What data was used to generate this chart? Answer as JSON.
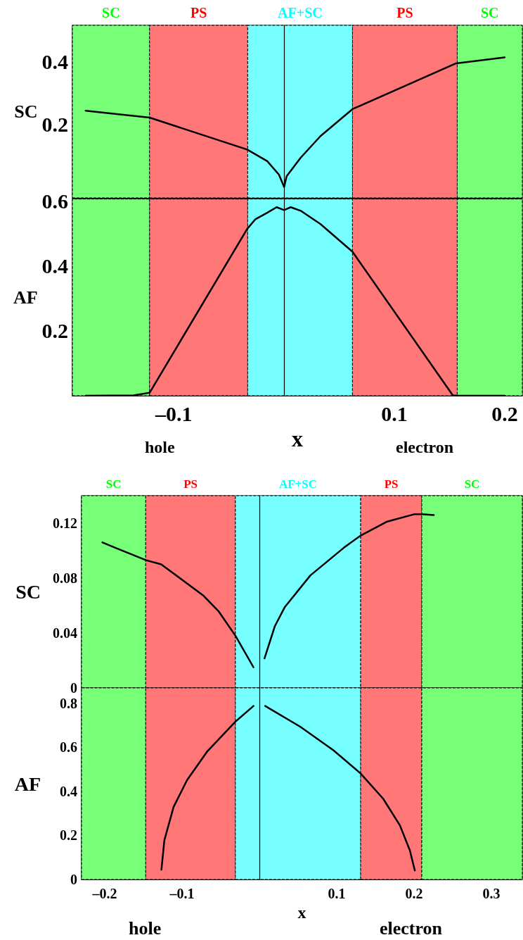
{
  "chart_data": [
    {
      "type": "line",
      "ylabel": "SC",
      "xlim": [
        -0.192,
        0.216
      ],
      "ylim": [
        -0.035,
        0.515
      ],
      "yticks": [
        0.2,
        0.4
      ],
      "tick_labels": "y",
      "marker": "none",
      "line_style": "solid",
      "grid": false,
      "series": [
        {
          "color": "#000000",
          "x": [
            -0.18,
            -0.122,
            -0.0335,
            -0.0153,
            -0.0047,
            0.0,
            0.0023,
            0.015,
            0.033,
            0.062,
            0.156,
            0.2
          ],
          "values": [
            0.243,
            0.221,
            0.119,
            0.082,
            0.039,
            0.0,
            0.034,
            0.093,
            0.162,
            0.248,
            0.394,
            0.413
          ]
        }
      ],
      "bands": [
        {
          "axis": "x",
          "from": -0.192,
          "to": -0.122,
          "label": "SC",
          "color": "#77ff77"
        },
        {
          "axis": "x",
          "from": -0.122,
          "to": -0.033,
          "label": "PS",
          "color": "#ff7777"
        },
        {
          "axis": "x",
          "from": -0.033,
          "to": 0.062,
          "label": "AF+SC",
          "color": "#77ffff"
        },
        {
          "axis": "x",
          "from": 0.062,
          "to": 0.157,
          "label": "PS",
          "color": "#ff7777"
        },
        {
          "axis": "x",
          "from": 0.157,
          "to": 0.216,
          "label": "SC",
          "color": "#77ff77"
        }
      ],
      "ref_lines": [
        {
          "axis": "x",
          "value": 0,
          "color": "#000000",
          "line_style": "solid"
        }
      ]
    },
    {
      "type": "line",
      "ylabel": "AF",
      "xlabel": "x",
      "xlim": [
        -0.192,
        0.216
      ],
      "xticks": [
        {
          "value": -0.1,
          "label": "–0.1"
        },
        0.1,
        0.2
      ],
      "ylim": [
        0,
        0.605
      ],
      "yticks": [
        0.2,
        0.4,
        0.6
      ],
      "marker": "none",
      "line_style": "solid",
      "grid": false,
      "annotations": [
        "hole",
        "electron"
      ],
      "series": [
        {
          "color": "#000000",
          "x": [
            -0.18,
            -0.1365,
            -0.122,
            -0.0335,
            -0.026,
            -0.0153,
            -0.0068,
            0.0,
            0.006,
            0.015,
            0.033,
            0.062,
            0.153,
            0.157,
            0.2
          ],
          "values": [
            0.0,
            0.001,
            0.009,
            0.513,
            0.543,
            0.563,
            0.58,
            0.571,
            0.58,
            0.569,
            0.528,
            0.443,
            0.001,
            0.0,
            0.0
          ]
        }
      ],
      "bands": [
        {
          "axis": "x",
          "from": -0.192,
          "to": -0.122,
          "color": "#77ff77"
        },
        {
          "axis": "x",
          "from": -0.122,
          "to": -0.033,
          "color": "#ff7777"
        },
        {
          "axis": "x",
          "from": -0.033,
          "to": 0.062,
          "color": "#77ffff"
        },
        {
          "axis": "x",
          "from": 0.062,
          "to": 0.157,
          "color": "#ff7777"
        },
        {
          "axis": "x",
          "from": 0.157,
          "to": 0.216,
          "color": "#77ff77"
        }
      ],
      "ref_lines": [
        {
          "axis": "x",
          "value": 0,
          "color": "#000000",
          "line_style": "solid"
        }
      ]
    },
    {
      "type": "line",
      "ylabel": "SC",
      "xlim": [
        -0.23,
        0.34
      ],
      "xticks": [
        {
          "value": -0.2,
          "label": null
        },
        {
          "value": -0.1,
          "label": null
        },
        {
          "value": 0,
          "label": null
        },
        {
          "value": 0.1,
          "label": null
        },
        {
          "value": 0.2,
          "label": null
        },
        {
          "value": 0.3,
          "label": null
        }
      ],
      "ylim": [
        0,
        0.14
      ],
      "yticks": [
        0,
        0.04,
        0.08,
        0.12
      ],
      "tick_labels": "y",
      "marker": "none",
      "line_style": "solid",
      "grid": false,
      "series": [
        {
          "color": "#000000",
          "x": [
            -0.203,
            -0.186,
            -0.1465,
            -0.127,
            -0.098,
            -0.072,
            -0.053,
            -0.031,
            -0.0076,
            0.0,
            0.0066,
            0.02,
            0.033,
            0.066,
            0.109,
            0.131,
            0.1645,
            0.201,
            0.2097,
            0.2256
          ],
          "values": [
            0.106,
            0.102,
            0.093,
            0.09,
            0.078,
            0.067,
            0.056,
            0.038,
            0.015,
            null,
            0.0215,
            0.045,
            0.059,
            0.082,
            0.102,
            0.111,
            0.121,
            0.1266,
            0.1266,
            0.1259
          ]
        }
      ],
      "bands": [
        {
          "axis": "x",
          "from": -0.23,
          "to": -0.147,
          "label": "SC",
          "color": "#77ff77"
        },
        {
          "axis": "x",
          "from": -0.147,
          "to": -0.031,
          "label": "PS",
          "color": "#ff7777"
        },
        {
          "axis": "x",
          "from": -0.031,
          "to": 0.131,
          "label": "AF+SC",
          "color": "#77ffff"
        },
        {
          "axis": "x",
          "from": 0.131,
          "to": 0.21,
          "label": "PS",
          "color": "#ff7777"
        },
        {
          "axis": "x",
          "from": 0.21,
          "to": 0.34,
          "label": "SC",
          "color": "#77ff77"
        }
      ],
      "ref_lines": [
        {
          "axis": "x",
          "value": 0,
          "color": "#000000",
          "line_style": "solid"
        }
      ]
    },
    {
      "type": "line",
      "ylabel": "AF",
      "xlabel": "x",
      "xlim": [
        -0.23,
        0.34
      ],
      "xticks": [
        {
          "value": -0.2,
          "label": "–0.2"
        },
        {
          "value": -0.1,
          "label": "–0.1"
        },
        {
          "value": 0,
          "label": null
        },
        0.1,
        0.2,
        0.3
      ],
      "ylim": [
        0,
        0.87
      ],
      "yticks": [
        0,
        0.2,
        0.4,
        0.6,
        0.8
      ],
      "marker": "none",
      "line_style": "solid",
      "grid": false,
      "annotations": [
        "hole",
        "electron"
      ],
      "series": [
        {
          "color": "#000000",
          "x": [
            -0.1267,
            -0.1229,
            -0.111,
            -0.0936,
            -0.0678,
            -0.031,
            -0.0076,
            0.0,
            0.0075,
            0.0527,
            0.0957,
            0.131,
            0.16,
            0.1817,
            0.1946,
            0.201
          ],
          "values": [
            0.044,
            0.178,
            0.329,
            0.451,
            0.58,
            0.717,
            0.788,
            null,
            0.788,
            0.694,
            0.587,
            0.481,
            0.367,
            0.246,
            0.132,
            0.041
          ]
        }
      ],
      "bands": [
        {
          "axis": "x",
          "from": -0.23,
          "to": -0.147,
          "color": "#77ff77"
        },
        {
          "axis": "x",
          "from": -0.147,
          "to": -0.031,
          "color": "#ff7777"
        },
        {
          "axis": "x",
          "from": -0.031,
          "to": 0.131,
          "color": "#77ffff"
        },
        {
          "axis": "x",
          "from": 0.131,
          "to": 0.21,
          "color": "#ff7777"
        },
        {
          "axis": "x",
          "from": 0.21,
          "to": 0.34,
          "color": "#77ff77"
        }
      ],
      "ref_lines": [
        {
          "axis": "x",
          "value": 0,
          "color": "#000000",
          "line_style": "solid"
        }
      ]
    }
  ]
}
